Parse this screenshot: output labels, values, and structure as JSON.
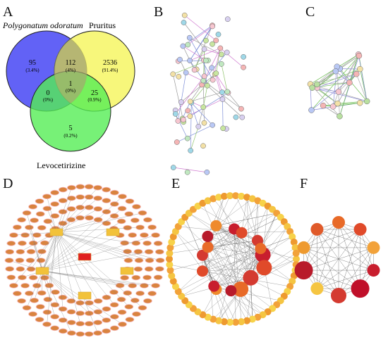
{
  "panels": {
    "A": {
      "letter": "A",
      "sets": [
        {
          "label": "Polygonatum odoratum",
          "color": "#3c3cf0"
        },
        {
          "label": "Pruritus",
          "color": "#f0f040"
        },
        {
          "label": "Levocetirizine",
          "color": "#3cea3c"
        }
      ],
      "regions": [
        {
          "count": "95",
          "pct": "(3.4%)"
        },
        {
          "count": "112",
          "pct": "(4%)"
        },
        {
          "count": "2536",
          "pct": "(91.4%)"
        },
        {
          "count": "1",
          "pct": "(0%)"
        },
        {
          "count": "0",
          "pct": "(0%)"
        },
        {
          "count": "25",
          "pct": "(0.9%)"
        },
        {
          "count": "5",
          "pct": "(0.2%)"
        }
      ]
    },
    "B": {
      "letter": "B"
    },
    "C": {
      "letter": "C"
    },
    "D": {
      "letter": "D"
    },
    "E": {
      "letter": "E"
    },
    "F": {
      "letter": "F"
    }
  }
}
